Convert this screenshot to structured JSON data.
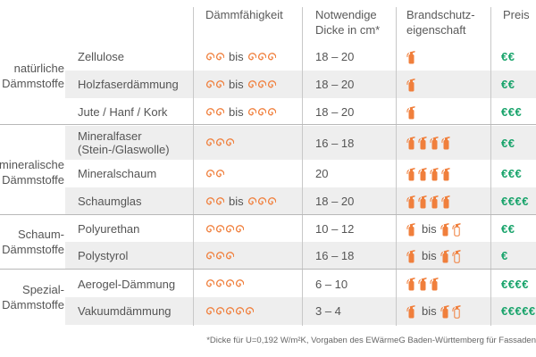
{
  "headers": {
    "insulation": "Dämmfähigkeit",
    "thickness": [
      "Notwendige",
      "Dicke in cm*"
    ],
    "fire": [
      "Brandschutz-",
      "eigenschaft"
    ],
    "price": "Preis"
  },
  "groups": [
    {
      "label": [
        "natürliche",
        "Dämmstoffe"
      ]
    },
    {
      "label": [
        "mineralische",
        "Dämmstoffe"
      ]
    },
    {
      "label": [
        "Schaum-",
        "Dämmstoffe"
      ]
    },
    {
      "label": [
        "Spezial-",
        "Dämmstoffe"
      ]
    }
  ],
  "rows": [
    {
      "name": [
        "Zellulose"
      ],
      "insul_min": 2,
      "insul_max": 3,
      "thickness": "18 – 20",
      "fire_min": 1,
      "fire_max": null,
      "price": "€€"
    },
    {
      "name": [
        "Holzfaserdämmung"
      ],
      "insul_min": 2,
      "insul_max": 3,
      "thickness": "18 – 20",
      "fire_min": 1,
      "fire_max": null,
      "price": "€€"
    },
    {
      "name": [
        "Jute / Hanf / Kork"
      ],
      "insul_min": 2,
      "insul_max": 3,
      "thickness": "18 – 20",
      "fire_min": 1,
      "fire_max": null,
      "price": "€€€"
    },
    {
      "name": [
        "Mineralfaser",
        "(Stein-/Glaswolle)"
      ],
      "insul_min": 3,
      "insul_max": null,
      "thickness": "16 – 18",
      "fire_min": 4,
      "fire_max": null,
      "price": "€€"
    },
    {
      "name": [
        "Mineralschaum"
      ],
      "insul_min": 2,
      "insul_max": null,
      "thickness": "20",
      "fire_min": 4,
      "fire_max": null,
      "price": "€€€"
    },
    {
      "name": [
        "Schaumglas"
      ],
      "insul_min": 2,
      "insul_max": 3,
      "thickness": "18 – 20",
      "fire_min": 4,
      "fire_max": null,
      "price": "€€€€"
    },
    {
      "name": [
        "Polyurethan"
      ],
      "insul_min": 4,
      "insul_max": null,
      "thickness": "10 – 12",
      "fire_min": 1,
      "fire_max": 2,
      "price": "€€"
    },
    {
      "name": [
        "Polystyrol"
      ],
      "insul_min": 3,
      "insul_max": null,
      "thickness": "16 – 18",
      "fire_min": 1,
      "fire_max": 2,
      "price": "€"
    },
    {
      "name": [
        "Aerogel-Dämmung"
      ],
      "insul_min": 4,
      "insul_max": null,
      "thickness": "6 – 10",
      "fire_min": 3,
      "fire_max": null,
      "price": "€€€€"
    },
    {
      "name": [
        "Vakuumdämmung"
      ],
      "insul_min": 5,
      "insul_max": null,
      "thickness": "3 – 4",
      "fire_min": 1,
      "fire_max": 2,
      "price": "€€€€€"
    }
  ],
  "bis_label": "bis",
  "footnote": "*Dicke für U=0,192 W/m²K, Vorgaben des EWärmeG Baden-Württemberg für Fassaden",
  "colors": {
    "accent": "#f07f3c",
    "price": "#17a36a",
    "shade": "#eeeeee"
  },
  "icons": {
    "insulation": "spiral-icon",
    "fire": "fire-extinguisher-icon"
  }
}
